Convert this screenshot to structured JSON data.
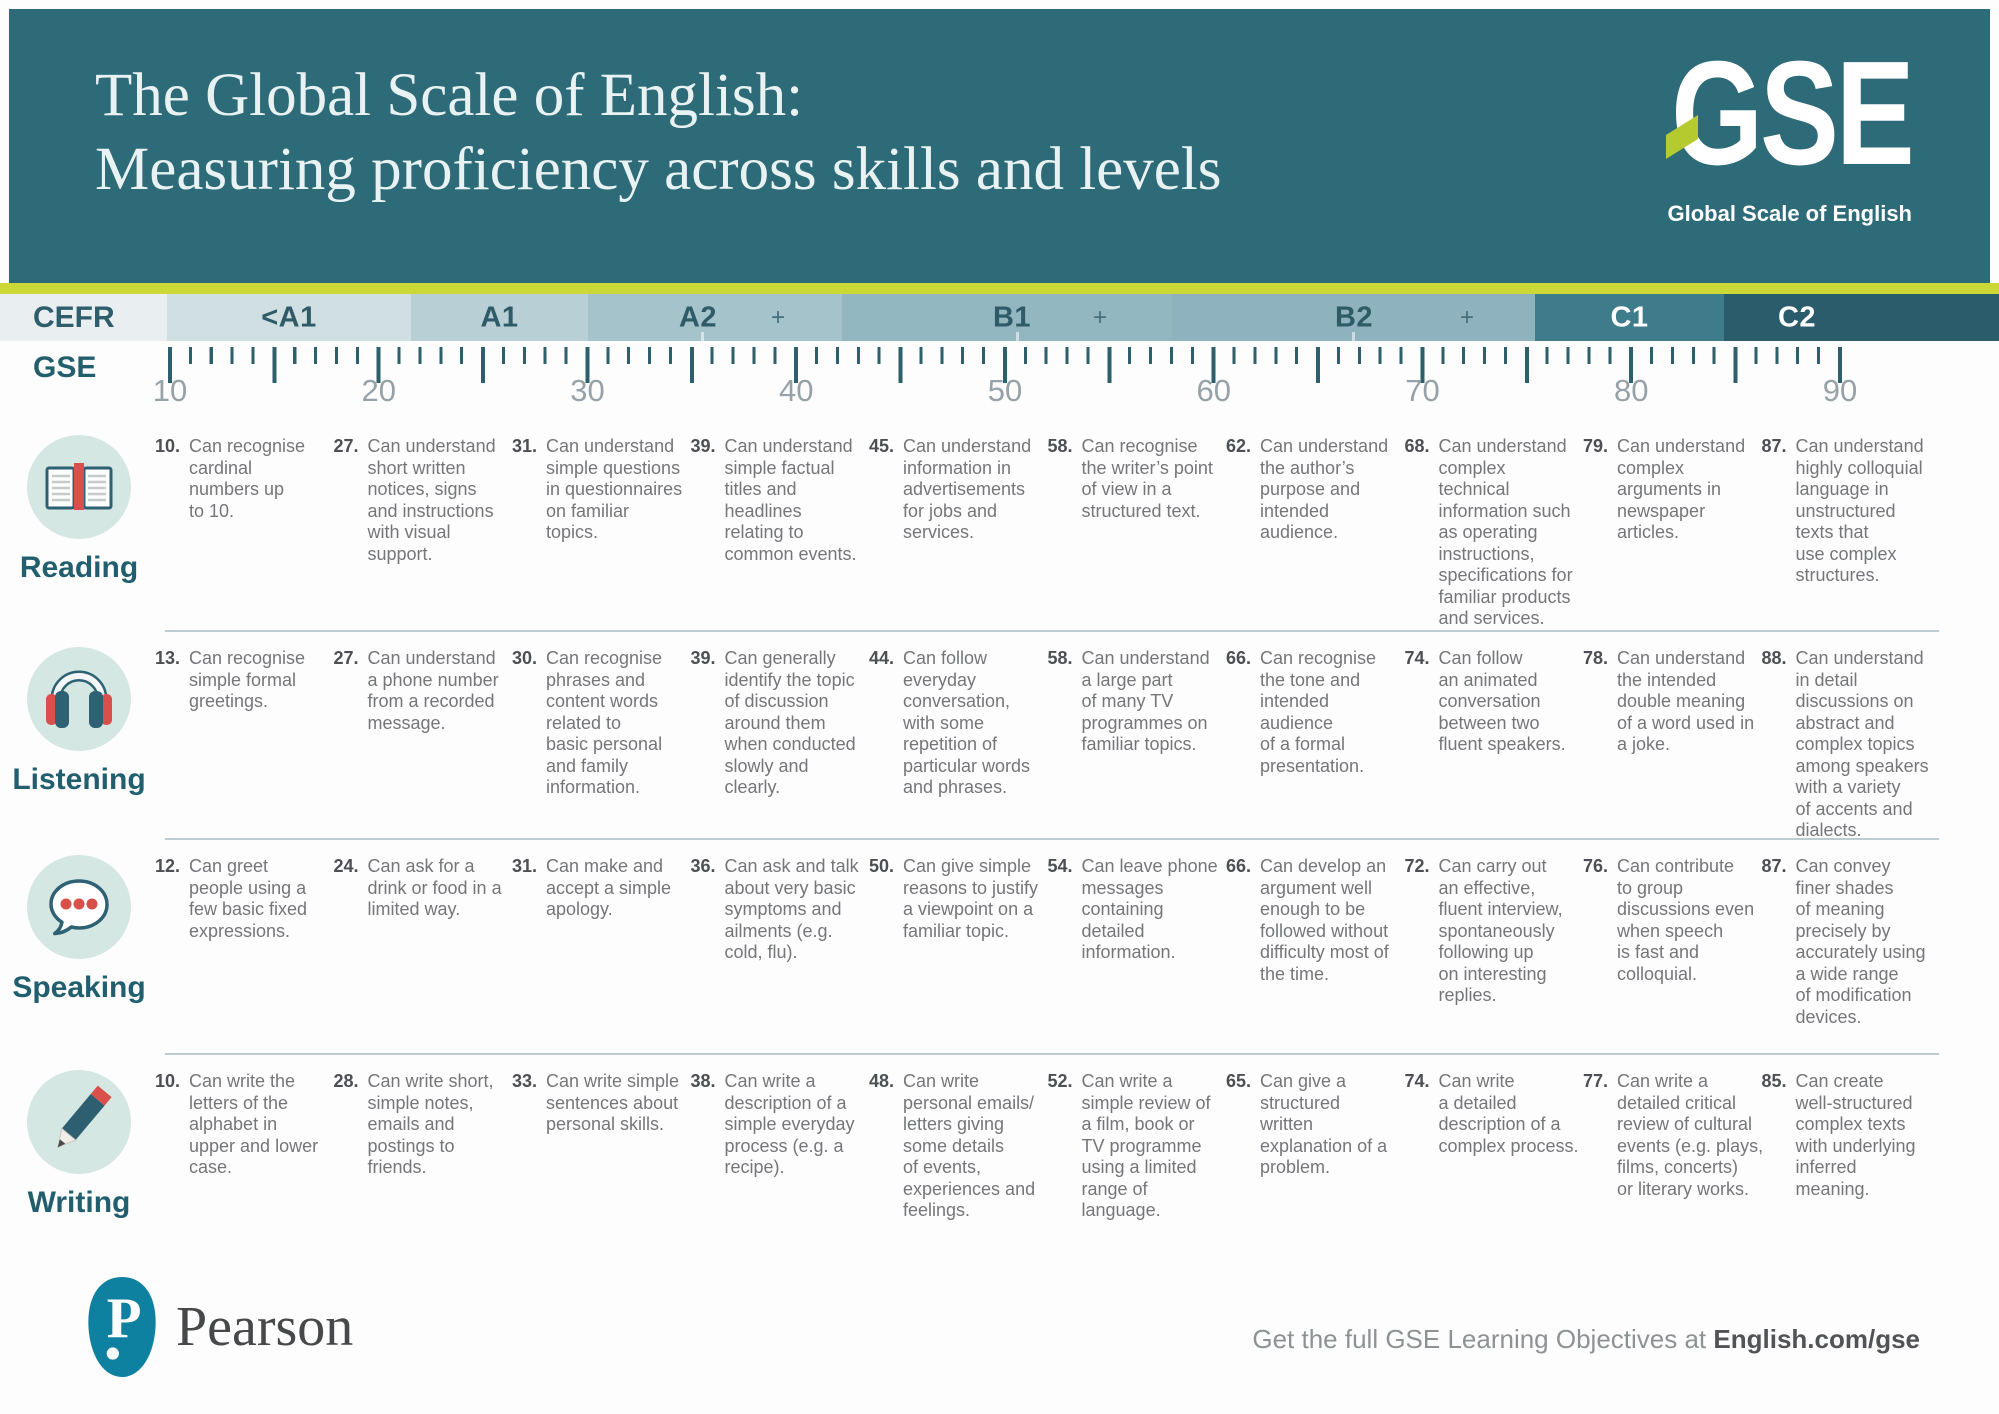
{
  "colors": {
    "header_teal": "#2d6b79",
    "accent_green": "#ccd836",
    "logo_arrow_green": "#b4ca2f",
    "brand_red": "#d9504b",
    "icon_teal": "#2e6173",
    "icon_circle_mint": "#d4e7e2",
    "c1_band": "#3e7c8b",
    "c2_band": "#2a5c6c",
    "pearson_teal": "#0f81a0"
  },
  "header": {
    "title_line1": "The Global Scale of English:",
    "title_line2": "Measuring proficiency across skills and levels",
    "logo_text": "GSE",
    "logo_subtitle": "Global Scale of English"
  },
  "scale": {
    "cefr_label": "CEFR",
    "gse_label": "GSE",
    "bands": [
      {
        "key": "pre-a1",
        "label": "<A1"
      },
      {
        "key": "a1",
        "label": "A1"
      },
      {
        "key": "a2",
        "label": "A2",
        "plus": "+"
      },
      {
        "key": "b1",
        "label": "B1",
        "plus": "+"
      },
      {
        "key": "b2",
        "label": "B2",
        "plus": "+"
      },
      {
        "key": "c1",
        "label": "C1"
      },
      {
        "key": "c2",
        "label": "C2"
      }
    ],
    "numbers": [
      10,
      20,
      30,
      40,
      50,
      60,
      70,
      80,
      90
    ]
  },
  "skills": [
    {
      "label": "Reading",
      "icon": "reading",
      "items": [
        {
          "score": "10.",
          "text": "Can recognise\ncardinal\nnumbers up\nto 10."
        },
        {
          "score": "27.",
          "text": "Can understand\nshort written\nnotices, signs\nand instructions\nwith visual\nsupport."
        },
        {
          "score": "31.",
          "text": "Can understand\nsimple questions\nin questionnaires\non familiar\ntopics."
        },
        {
          "score": "39.",
          "text": "Can understand\nsimple factual\ntitles and\nheadlines\nrelating to\ncommon events."
        },
        {
          "score": "45.",
          "text": "Can understand\ninformation in\nadvertisements\nfor jobs and\nservices."
        },
        {
          "score": "58.",
          "text": "Can recognise\nthe writer’s point\nof view in a\nstructured text."
        },
        {
          "score": "62.",
          "text": "Can understand\nthe author’s\npurpose and\nintended\naudience."
        },
        {
          "score": "68.",
          "text": "Can understand\ncomplex\ntechnical\ninformation such\nas operating\ninstructions,\nspecifications for\nfamiliar products\nand services."
        },
        {
          "score": "79.",
          "text": "Can understand\ncomplex\narguments in\nnewspaper\narticles."
        },
        {
          "score": "87.",
          "text": "Can understand\nhighly colloquial\nlanguage in\nunstructured\ntexts that\nuse complex\nstructures."
        }
      ]
    },
    {
      "label": "Listening",
      "icon": "listening",
      "items": [
        {
          "score": "13.",
          "text": "Can recognise\nsimple formal\ngreetings."
        },
        {
          "score": "27.",
          "text": "Can understand\na phone number\nfrom a recorded\nmessage."
        },
        {
          "score": "30.",
          "text": "Can recognise\nphrases and\ncontent words\nrelated to\nbasic personal\nand family\ninformation."
        },
        {
          "score": "39.",
          "text": "Can generally\nidentify the topic\nof discussion\naround them\nwhen conducted\nslowly and\nclearly."
        },
        {
          "score": "44.",
          "text": "Can follow\neveryday\nconversation,\nwith some\nrepetition of\nparticular words\nand phrases."
        },
        {
          "score": "58.",
          "text": "Can understand\na large part\nof many TV\nprogrammes on\nfamiliar topics."
        },
        {
          "score": "66.",
          "text": "Can recognise\nthe tone and\nintended\naudience\nof a formal\npresentation."
        },
        {
          "score": "74.",
          "text": "Can follow\nan animated\nconversation\nbetween two\nfluent speakers."
        },
        {
          "score": "78.",
          "text": "Can understand\nthe intended\ndouble meaning\nof a word used in\na joke."
        },
        {
          "score": "88.",
          "text": "Can understand\nin detail\ndiscussions on\nabstract and\ncomplex topics\namong speakers\nwith a variety\nof accents and\ndialects."
        }
      ]
    },
    {
      "label": "Speaking",
      "icon": "speaking",
      "items": [
        {
          "score": "12.",
          "text": "Can greet\npeople using a\nfew basic fixed\nexpressions."
        },
        {
          "score": "24.",
          "text": "Can ask for a\ndrink or food in a\nlimited way."
        },
        {
          "score": "31.",
          "text": "Can make and\naccept a simple\napology."
        },
        {
          "score": "36.",
          "text": "Can ask and talk\nabout very basic\nsymptoms and\nailments (e.g.\ncold, flu)."
        },
        {
          "score": "50.",
          "text": "Can give simple\nreasons to justify\na viewpoint on a\nfamiliar topic."
        },
        {
          "score": "54.",
          "text": "Can leave phone\nmessages\ncontaining\ndetailed\ninformation."
        },
        {
          "score": "66.",
          "text": "Can develop an\nargument well\nenough to be\nfollowed without\ndifficulty most of\nthe time."
        },
        {
          "score": "72.",
          "text": "Can carry out\nan effective,\nfluent interview,\nspontaneously\nfollowing up\non interesting\nreplies."
        },
        {
          "score": "76.",
          "text": "Can contribute\nto group\ndiscussions even\nwhen speech\nis fast and\ncolloquial."
        },
        {
          "score": "87.",
          "text": "Can convey\nfiner shades\nof meaning\nprecisely by\naccurately using\na wide range\nof modification\ndevices."
        }
      ]
    },
    {
      "label": "Writing",
      "icon": "writing",
      "items": [
        {
          "score": "10.",
          "text": "Can write the\nletters of the\nalphabet in\nupper and lower\ncase."
        },
        {
          "score": "28.",
          "text": "Can write short,\nsimple notes,\nemails and\npostings to\nfriends."
        },
        {
          "score": "33.",
          "text": "Can write simple\nsentences about\npersonal skills."
        },
        {
          "score": "38.",
          "text": "Can write a\ndescription of a\nsimple everyday\nprocess (e.g. a\nrecipe)."
        },
        {
          "score": "48.",
          "text": "Can write\npersonal emails/\nletters giving\nsome details\nof events,\nexperiences and\nfeelings."
        },
        {
          "score": "52.",
          "text": "Can write a\nsimple review of\na film, book or\nTV programme\nusing a limited\nrange of\nlanguage."
        },
        {
          "score": "65.",
          "text": "Can give a\nstructured\nwritten\nexplanation of a\nproblem."
        },
        {
          "score": "74.",
          "text": "Can write\na detailed\ndescription of a\ncomplex process."
        },
        {
          "score": "77.",
          "text": "Can write a\ndetailed critical\nreview of cultural\nevents (e.g. plays,\nfilms, concerts)\nor literary works."
        },
        {
          "score": "85.",
          "text": "Can create\nwell-structured\ncomplex texts\nwith underlying\ninferred\nmeaning."
        }
      ]
    }
  ],
  "footer": {
    "brand": "Pearson",
    "cta_prefix": "Get the full GSE Learning Objectives at ",
    "cta_link": "English.com/gse"
  }
}
